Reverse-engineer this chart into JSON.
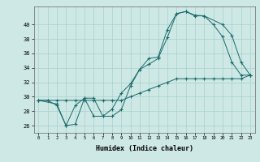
{
  "xlabel": "Humidex (Indice chaleur)",
  "background_color": "#cde8e5",
  "grid_color": "#a8d0cd",
  "line_color": "#1a6b6b",
  "xlim": [
    -0.5,
    23.5
  ],
  "ylim": [
    25.0,
    42.5
  ],
  "yticks": [
    26,
    28,
    30,
    32,
    34,
    36,
    38,
    40
  ],
  "xticks": [
    0,
    1,
    2,
    3,
    4,
    5,
    6,
    7,
    8,
    9,
    10,
    11,
    12,
    13,
    14,
    15,
    16,
    17,
    18,
    19,
    20,
    21,
    22,
    23
  ],
  "series1_x": [
    0,
    1,
    2,
    3,
    4,
    5,
    6,
    7,
    8,
    9,
    10,
    11,
    12,
    13,
    14,
    15,
    16,
    17,
    18,
    19,
    20,
    21,
    22,
    23
  ],
  "series1_y": [
    29.5,
    29.5,
    29.5,
    29.5,
    29.5,
    29.5,
    29.5,
    29.5,
    29.5,
    29.5,
    30.0,
    30.5,
    31.0,
    31.5,
    32.0,
    32.5,
    32.5,
    32.5,
    32.5,
    32.5,
    32.5,
    32.5,
    32.5,
    33.0
  ],
  "series2_x": [
    0,
    1,
    2,
    3,
    4,
    5,
    6,
    7,
    8,
    9,
    10,
    11,
    12,
    13,
    14,
    15,
    16,
    17,
    18,
    19,
    20,
    21,
    22,
    23
  ],
  "series2_y": [
    29.5,
    29.5,
    28.8,
    26.0,
    28.8,
    29.8,
    27.3,
    27.3,
    28.3,
    30.5,
    31.8,
    33.8,
    35.3,
    35.5,
    39.3,
    41.5,
    41.8,
    41.2,
    41.2,
    40.0,
    38.3,
    34.8,
    33.0,
    33.0
  ],
  "series3_x": [
    0,
    2,
    3,
    4,
    5,
    6,
    7,
    8,
    9,
    10,
    11,
    12,
    13,
    14,
    15,
    16,
    17,
    18,
    20,
    21,
    22,
    23
  ],
  "series3_y": [
    29.5,
    29.0,
    26.0,
    26.2,
    29.8,
    29.8,
    27.3,
    27.3,
    28.2,
    31.5,
    33.8,
    34.5,
    35.3,
    38.2,
    41.5,
    41.8,
    41.3,
    41.2,
    40.0,
    38.5,
    34.8,
    33.0
  ]
}
